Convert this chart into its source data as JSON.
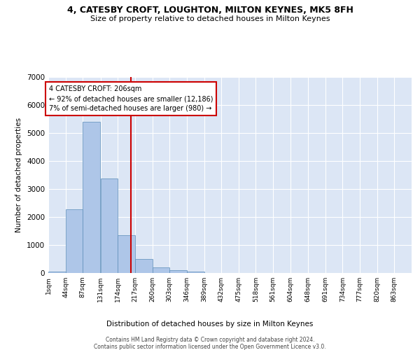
{
  "title": "4, CATESBY CROFT, LOUGHTON, MILTON KEYNES, MK5 8FH",
  "subtitle": "Size of property relative to detached houses in Milton Keynes",
  "xlabel": "Distribution of detached houses by size in Milton Keynes",
  "ylabel": "Number of detached properties",
  "bar_color": "#aec6e8",
  "bar_edge_color": "#5b8db8",
  "background_color": "#dce6f5",
  "grid_color": "#ffffff",
  "annotation_line_color": "#cc0000",
  "annotation_box_color": "#cc0000",
  "annotation_text": "4 CATESBY CROFT: 206sqm\n← 92% of detached houses are smaller (12,186)\n7% of semi-detached houses are larger (980) →",
  "property_size": 206,
  "footer_line1": "Contains HM Land Registry data © Crown copyright and database right 2024.",
  "footer_line2": "Contains public sector information licensed under the Open Government Licence v3.0.",
  "bin_labels": [
    "1sqm",
    "44sqm",
    "87sqm",
    "131sqm",
    "174sqm",
    "217sqm",
    "260sqm",
    "303sqm",
    "346sqm",
    "389sqm",
    "432sqm",
    "475sqm",
    "518sqm",
    "561sqm",
    "604sqm",
    "648sqm",
    "691sqm",
    "734sqm",
    "777sqm",
    "820sqm",
    "863sqm"
  ],
  "bin_edges": [
    1,
    44,
    87,
    131,
    174,
    217,
    260,
    303,
    346,
    389,
    432,
    475,
    518,
    561,
    604,
    648,
    691,
    734,
    777,
    820,
    863
  ],
  "bar_heights": [
    50,
    2280,
    5400,
    3380,
    1340,
    500,
    195,
    100,
    45,
    0,
    0,
    0,
    0,
    0,
    0,
    0,
    0,
    0,
    0,
    0
  ],
  "ylim": [
    0,
    7000
  ],
  "yticks": [
    0,
    1000,
    2000,
    3000,
    4000,
    5000,
    6000,
    7000
  ]
}
